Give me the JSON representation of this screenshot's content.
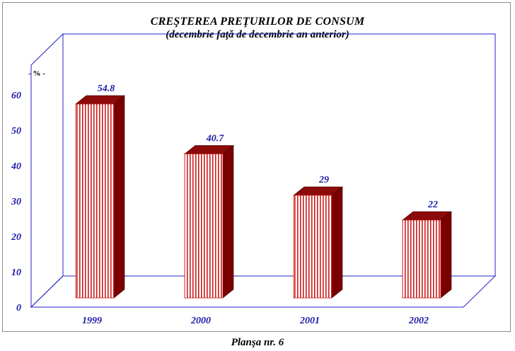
{
  "title": "CREŞTEREA PREŢURILOR DE CONSUM",
  "subtitle": "(decembrie faţă de decembrie an anterior)",
  "footer": "Planşa nr. 6",
  "chart_data": {
    "type": "bar",
    "categories": [
      "1999",
      "2000",
      "2001",
      "2002"
    ],
    "values": [
      54.8,
      40.7,
      29,
      22
    ],
    "value_labels": [
      "54.8",
      "40.7",
      "29",
      "22"
    ],
    "unit_label": "- % -",
    "yticks": [
      "0",
      "10",
      "20",
      "30",
      "40",
      "50",
      "60"
    ],
    "ylim": [
      0,
      60
    ],
    "grid": false,
    "legend": "none",
    "three_d": true,
    "colors": {
      "bar_front_stripe": "#cc1a1a",
      "bar_front_bg": "#ffffff",
      "bar_side": "#7a0000",
      "bar_top": "#8b0a0a",
      "axis_text": "#1a1aa8",
      "frame": "#2323c8"
    }
  }
}
